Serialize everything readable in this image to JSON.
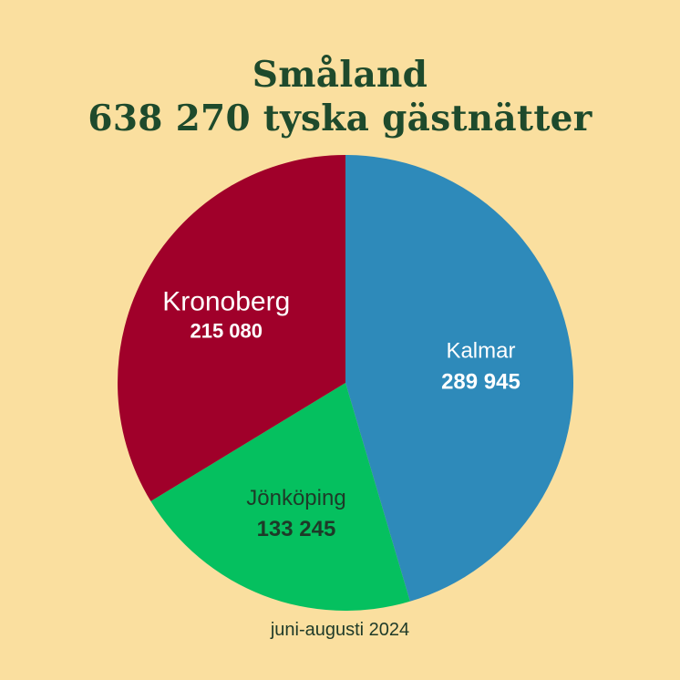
{
  "title_line1": "Småland",
  "title_line2": "638 270 tyska gästnätter",
  "footer": "juni-augusti 2024",
  "chart_data": {
    "type": "pie",
    "start": "12 o'clock",
    "direction": "clockwise",
    "slices": [
      {
        "label": "Kalmar",
        "value": 289945,
        "value_text": "289 945",
        "color": "#2E8ABA",
        "text_color": "#FFFFFF"
      },
      {
        "label": "Jönköping",
        "value": 133245,
        "value_text": "133 245",
        "color": "#05C05F",
        "text_color": "#1E3A28"
      },
      {
        "label": "Kronoberg",
        "value": 215080,
        "value_text": "215 080",
        "color": "#A0002A",
        "text_color": "#FFFFFF"
      }
    ]
  }
}
